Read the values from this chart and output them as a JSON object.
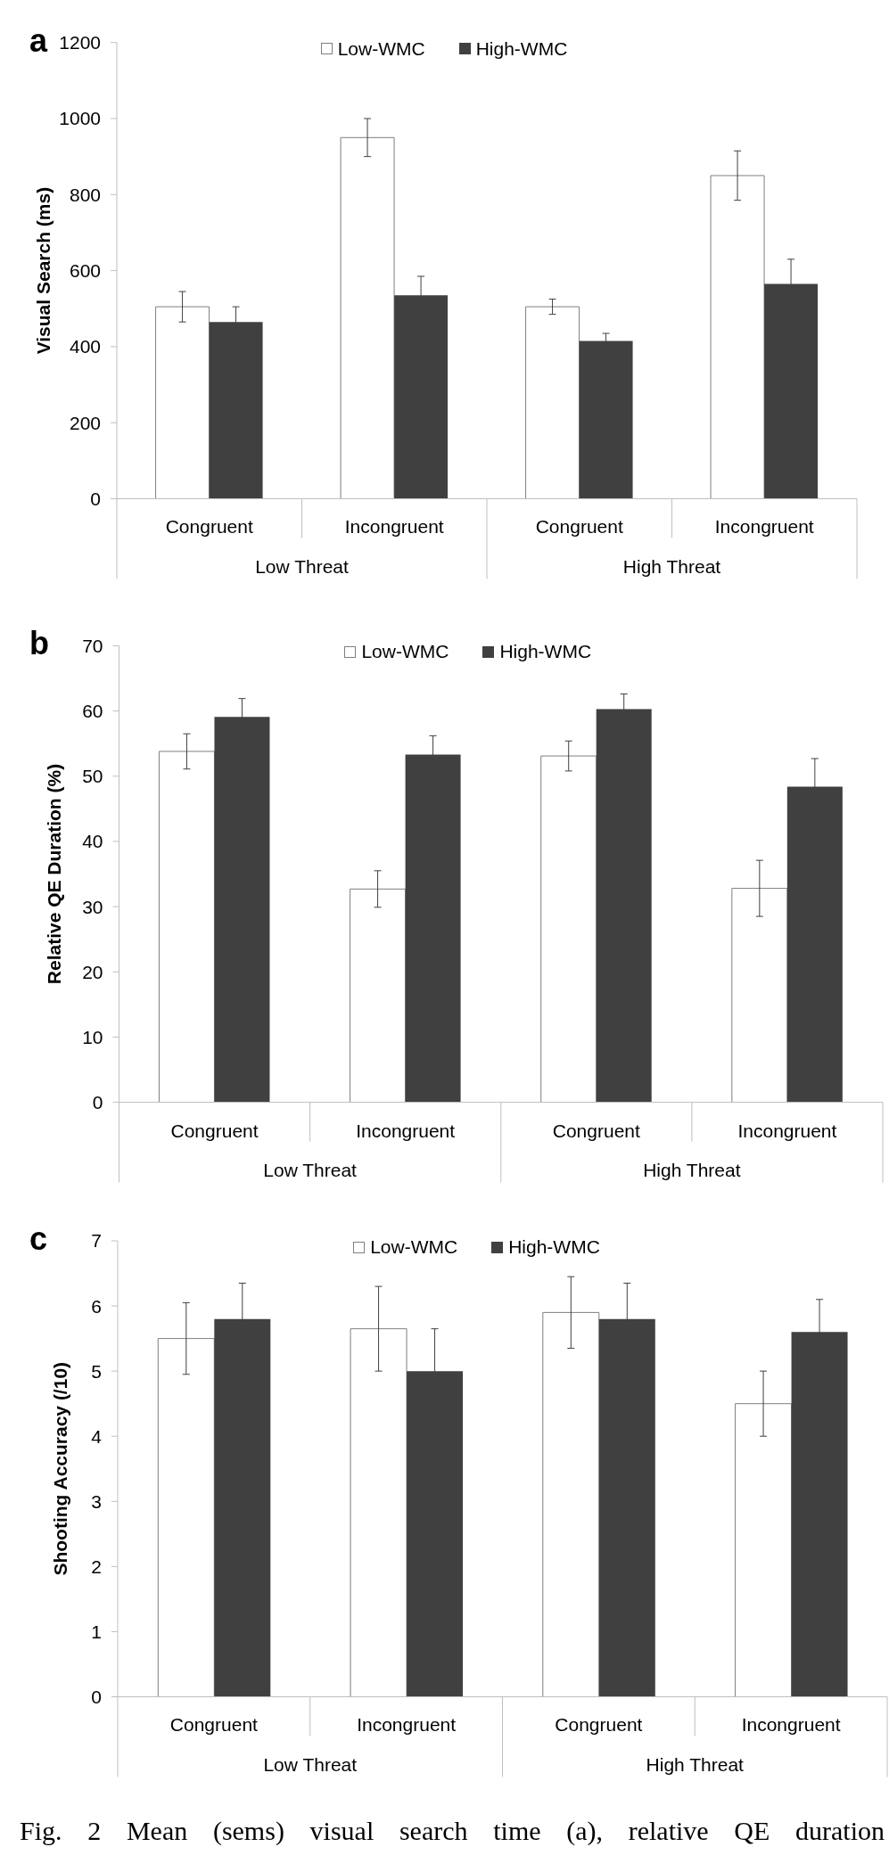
{
  "chart_data": [
    {
      "type": "bar",
      "title": "a",
      "ylabel": "Visual Search (ms)",
      "categories": [
        "Congruent",
        "Incongruent",
        "Congruent",
        "Incongruent"
      ],
      "annotations": [
        "Low Threat",
        "High Threat"
      ],
      "series": [
        {
          "name": "Low-WMC",
          "color": "#ffffff",
          "values": [
            505,
            950,
            505,
            850
          ],
          "errors": [
            40,
            50,
            20,
            65
          ]
        },
        {
          "name": "High-WMC",
          "color": "#404040",
          "values": [
            465,
            535,
            415,
            565
          ],
          "errors": [
            40,
            50,
            20,
            65
          ]
        }
      ],
      "ylim": [
        0,
        1200
      ],
      "yticks": [
        0,
        200,
        400,
        600,
        800,
        1000,
        1200
      ],
      "legend": "top"
    },
    {
      "type": "bar",
      "title": "b",
      "ylabel": "Relative QE Duration (%)",
      "categories": [
        "Congruent",
        "Incongruent",
        "Congruent",
        "Incongruent"
      ],
      "annotations": [
        "Low Threat",
        "High Threat"
      ],
      "series": [
        {
          "name": "Low-WMC",
          "color": "#ffffff",
          "values": [
            53.8,
            32.7,
            53.1,
            32.8
          ],
          "errors": [
            2.7,
            2.8,
            2.3,
            4.3
          ]
        },
        {
          "name": "High-WMC",
          "color": "#404040",
          "values": [
            59.1,
            53.3,
            60.3,
            48.4
          ],
          "errors": [
            2.8,
            2.9,
            2.3,
            4.3
          ]
        }
      ],
      "ylim": [
        0,
        70
      ],
      "yticks": [
        0,
        10,
        20,
        30,
        40,
        50,
        60,
        70
      ],
      "legend": "top"
    },
    {
      "type": "bar",
      "title": "c",
      "ylabel": "Shooting Accuracy (/10)",
      "categories": [
        "Congruent",
        "Incongruent",
        "Congruent",
        "Incongruent"
      ],
      "annotations": [
        "Low Threat",
        "High Threat"
      ],
      "series": [
        {
          "name": "Low-WMC",
          "color": "#ffffff",
          "values": [
            5.5,
            5.65,
            5.9,
            4.5
          ],
          "errors": [
            0.55,
            0.65,
            0.55,
            0.5
          ]
        },
        {
          "name": "High-WMC",
          "color": "#404040",
          "values": [
            5.8,
            5.0,
            5.8,
            5.6
          ],
          "errors": [
            0.55,
            0.65,
            0.55,
            0.5
          ]
        }
      ],
      "ylim": [
        0,
        7
      ],
      "yticks": [
        0,
        1,
        2,
        3,
        4,
        5,
        6,
        7
      ],
      "legend": "top"
    },
    {
      "type": "other",
      "annotations": [
        "Fig. 2 Mean (sems) visual search time (a), relative QE duration"
      ]
    }
  ]
}
